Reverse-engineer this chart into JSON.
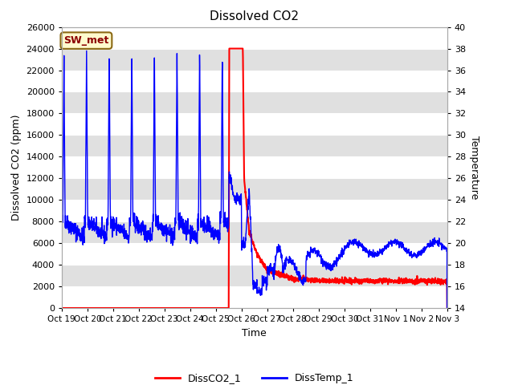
{
  "title": "Dissolved CO2",
  "xlabel": "Time",
  "ylabel_left": "Dissolved CO2 (ppm)",
  "ylabel_right": "Temperature",
  "ylim_left": [
    0,
    26000
  ],
  "ylim_right": [
    14,
    40
  ],
  "yticks_left": [
    0,
    2000,
    4000,
    6000,
    8000,
    10000,
    12000,
    14000,
    16000,
    18000,
    20000,
    22000,
    24000,
    26000
  ],
  "yticks_right": [
    14,
    16,
    18,
    24,
    26,
    28,
    30,
    32,
    34,
    36,
    38,
    40
  ],
  "yticks_right_full": [
    14,
    16,
    18,
    20,
    22,
    24,
    26,
    28,
    30,
    32,
    34,
    36,
    38,
    40
  ],
  "xtick_labels": [
    "Oct 19",
    "Oct 20",
    "Oct 21",
    "Oct 22",
    "Oct 23",
    "Oct 24",
    "Oct 25",
    "Oct 26",
    "Oct 27",
    "Oct 28",
    "Oct 29",
    "Oct 30",
    "Oct 31",
    "Nov 1",
    "Nov 2",
    "Nov 3"
  ],
  "annotation_text": "SW_met",
  "annotation_color": "#8B0000",
  "annotation_bg": "#FFFACD",
  "annotation_border": "#8B6914",
  "legend_entries": [
    "DissCO2_1",
    "DissTemp_1"
  ],
  "legend_colors": [
    "#FF0000",
    "#0000FF"
  ],
  "background_color": "#FFFFFF",
  "band_color": "#E0E0E0",
  "co2_color": "#FF0000",
  "temp_color": "#0000FF",
  "co2_linewidth": 1.5,
  "temp_linewidth": 1.0
}
